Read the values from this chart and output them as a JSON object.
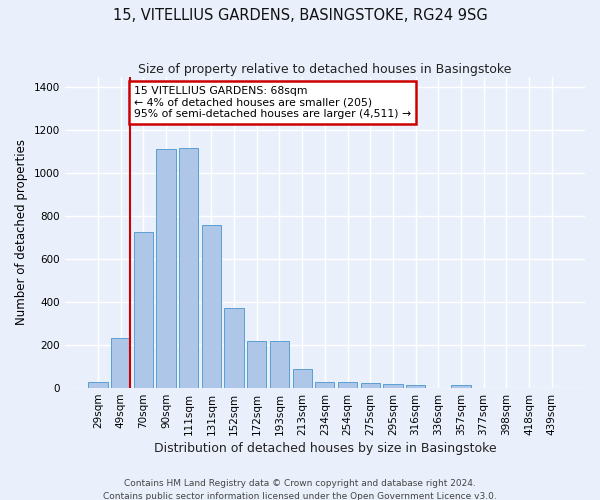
{
  "title": "15, VITELLIUS GARDENS, BASINGSTOKE, RG24 9SG",
  "subtitle": "Size of property relative to detached houses in Basingstoke",
  "xlabel": "Distribution of detached houses by size in Basingstoke",
  "ylabel": "Number of detached properties",
  "footnote1": "Contains HM Land Registry data © Crown copyright and database right 2024.",
  "footnote2": "Contains public sector information licensed under the Open Government Licence v3.0.",
  "bar_labels": [
    "29sqm",
    "49sqm",
    "70sqm",
    "90sqm",
    "111sqm",
    "131sqm",
    "152sqm",
    "172sqm",
    "193sqm",
    "213sqm",
    "234sqm",
    "254sqm",
    "275sqm",
    "295sqm",
    "316sqm",
    "336sqm",
    "357sqm",
    "377sqm",
    "398sqm",
    "418sqm",
    "439sqm"
  ],
  "bar_values": [
    30,
    235,
    725,
    1115,
    1120,
    760,
    375,
    220,
    220,
    90,
    30,
    30,
    25,
    20,
    15,
    0,
    12,
    0,
    0,
    0,
    0
  ],
  "bar_color": "#aec6e8",
  "bar_edge_color": "#5a9fd4",
  "annotation_text": "15 VITELLIUS GARDENS: 68sqm\n← 4% of detached houses are smaller (205)\n95% of semi-detached houses are larger (4,511) →",
  "annotation_box_color": "#ffffff",
  "annotation_box_edge_color": "#cc0000",
  "vline_color": "#cc0000",
  "vline_x_bin": 1.43,
  "ylim": [
    0,
    1450
  ],
  "yticks": [
    0,
    200,
    400,
    600,
    800,
    1000,
    1200,
    1400
  ],
  "background_color": "#eaf0fb",
  "grid_color": "#ffffff",
  "title_fontsize": 10.5,
  "subtitle_fontsize": 9,
  "ylabel_fontsize": 8.5,
  "xlabel_fontsize": 9,
  "tick_fontsize": 7.5,
  "annot_fontsize": 7.8,
  "footnote_fontsize": 6.5
}
